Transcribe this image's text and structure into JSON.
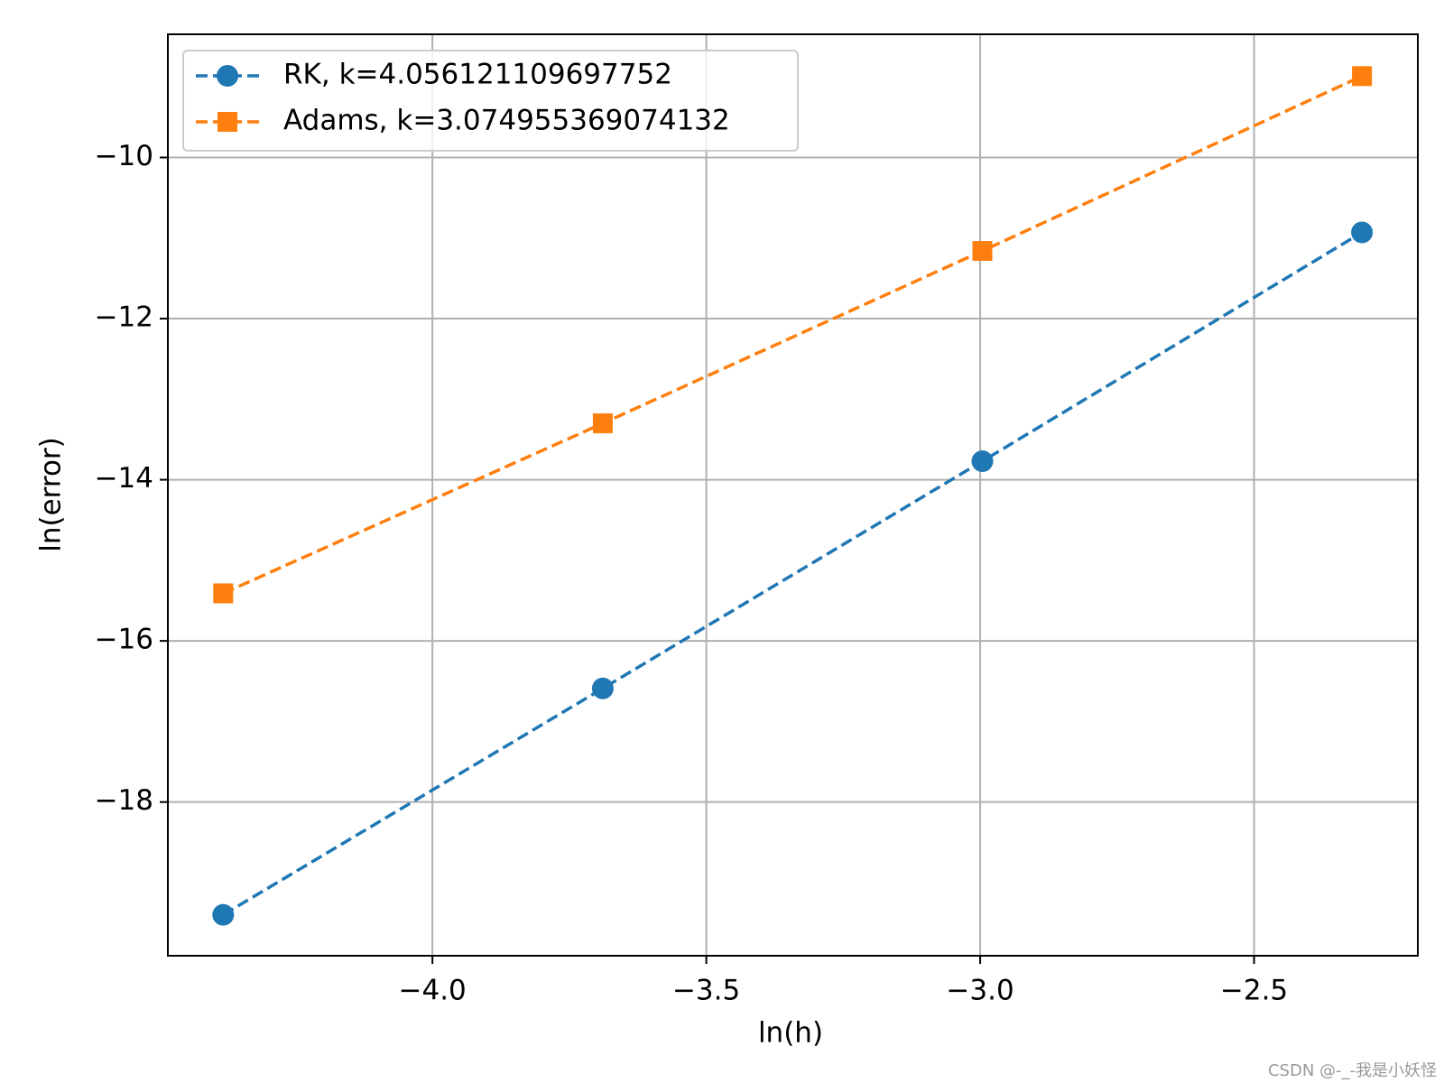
{
  "chart_data": {
    "type": "line",
    "x_label": "ln(h)",
    "y_label": "ln(error)",
    "x": [
      -4.382,
      -3.689,
      -2.996,
      -2.303
    ],
    "series": [
      {
        "name": "RK, k=4.056121109697752",
        "color": "#1f77b4",
        "marker": "circle",
        "values": [
          -19.4,
          -16.59,
          -13.77,
          -10.93
        ]
      },
      {
        "name": "Adams, k=3.074955369074132",
        "color": "#ff7f0e",
        "marker": "square",
        "values": [
          -15.41,
          -13.3,
          -11.16,
          -8.99
        ]
      }
    ],
    "xlim": [
      -4.483,
      -2.201
    ],
    "ylim": [
      -19.908,
      -8.471
    ],
    "xticks": [
      {
        "value": -4.0,
        "label": "−4.0"
      },
      {
        "value": -3.5,
        "label": "−3.5"
      },
      {
        "value": -3.0,
        "label": "−3.0"
      },
      {
        "value": -2.5,
        "label": "−2.5"
      }
    ],
    "yticks": [
      {
        "value": -18,
        "label": "−18"
      },
      {
        "value": -16,
        "label": "−16"
      },
      {
        "value": -14,
        "label": "−14"
      },
      {
        "value": -12,
        "label": "−12"
      },
      {
        "value": -10,
        "label": "−10"
      }
    ],
    "grid": true,
    "legend": "upper left",
    "watermark": "CSDN @-_-我是小妖怪"
  }
}
